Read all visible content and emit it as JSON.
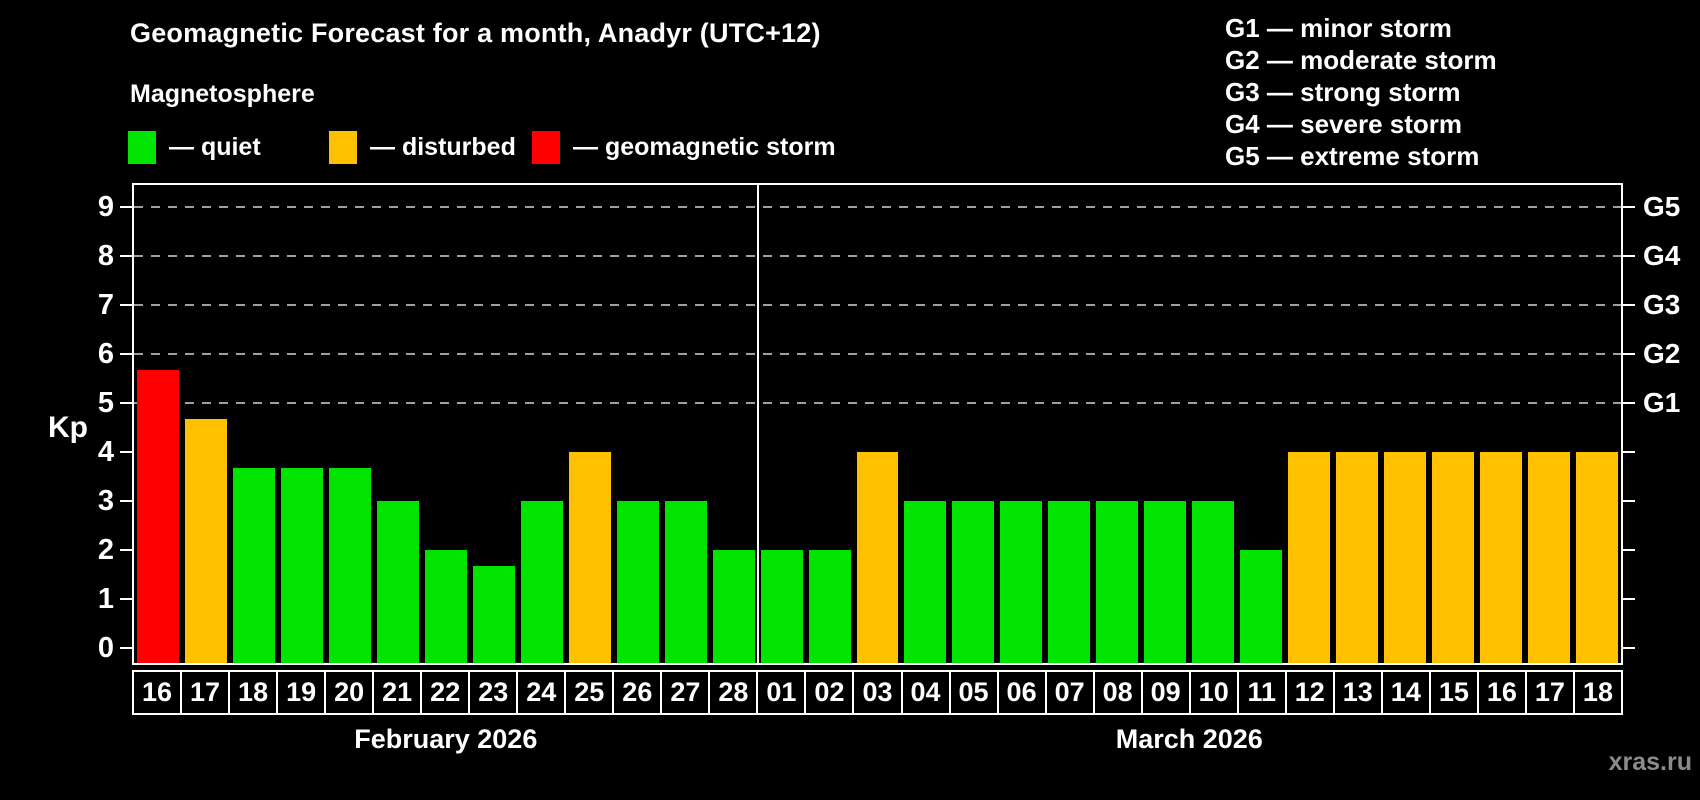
{
  "title": "Geomagnetic Forecast for a month, Anadyr (UTC+12)",
  "subtitle": "Magnetosphere",
  "status_legend": [
    {
      "name": "quiet",
      "label": "— quiet",
      "color": "#00e400"
    },
    {
      "name": "disturbed",
      "label": "— disturbed",
      "color": "#ffc000"
    },
    {
      "name": "storm",
      "label": "— geomagnetic storm",
      "color": "#ff0000"
    }
  ],
  "g_scale_legend": [
    "G1 — minor storm",
    "G2 — moderate storm",
    "G3 — strong storm",
    "G4 — severe storm",
    "G5 — extreme storm"
  ],
  "watermark": "xras.ru",
  "chart_data": {
    "type": "bar",
    "title": "Geomagnetic Forecast for a month, Anadyr (UTC+12)",
    "ylabel": "Kp",
    "xlabel": "",
    "ylim": [
      0,
      9
    ],
    "y_ticks": [
      0,
      1,
      2,
      3,
      4,
      5,
      6,
      7,
      8,
      9
    ],
    "gridlines_at_kp": [
      5,
      6,
      7,
      8,
      9
    ],
    "grid_style": "dashed gray horizontal lines at storm levels only",
    "right_axis_labels": [
      {
        "label": "G1",
        "kp": 5
      },
      {
        "label": "G2",
        "kp": 6
      },
      {
        "label": "G3",
        "kp": 7
      },
      {
        "label": "G4",
        "kp": 8
      },
      {
        "label": "G5",
        "kp": 9
      }
    ],
    "legend_position": "top",
    "months": [
      {
        "label": "February 2026",
        "days": 13
      },
      {
        "label": "March 2026",
        "days": 18
      }
    ],
    "categories": [
      "16",
      "17",
      "18",
      "19",
      "20",
      "21",
      "22",
      "23",
      "24",
      "25",
      "26",
      "27",
      "28",
      "01",
      "02",
      "03",
      "04",
      "05",
      "06",
      "07",
      "08",
      "09",
      "10",
      "11",
      "12",
      "13",
      "14",
      "15",
      "16",
      "17",
      "18"
    ],
    "values": [
      5.67,
      4.67,
      3.67,
      3.67,
      3.67,
      3,
      2,
      1.67,
      3,
      4,
      3,
      3,
      2,
      2,
      2,
      4,
      3,
      3,
      3,
      3,
      3,
      3,
      3,
      2,
      4,
      4,
      4,
      4,
      4,
      4,
      4
    ],
    "status": [
      "storm",
      "disturbed",
      "quiet",
      "quiet",
      "quiet",
      "quiet",
      "quiet",
      "quiet",
      "quiet",
      "disturbed",
      "quiet",
      "quiet",
      "quiet",
      "quiet",
      "quiet",
      "disturbed",
      "quiet",
      "quiet",
      "quiet",
      "quiet",
      "quiet",
      "quiet",
      "quiet",
      "quiet",
      "disturbed",
      "disturbed",
      "disturbed",
      "disturbed",
      "disturbed",
      "disturbed",
      "disturbed"
    ],
    "colors": {
      "quiet": "#00e400",
      "disturbed": "#ffc000",
      "storm": "#ff0000"
    }
  }
}
